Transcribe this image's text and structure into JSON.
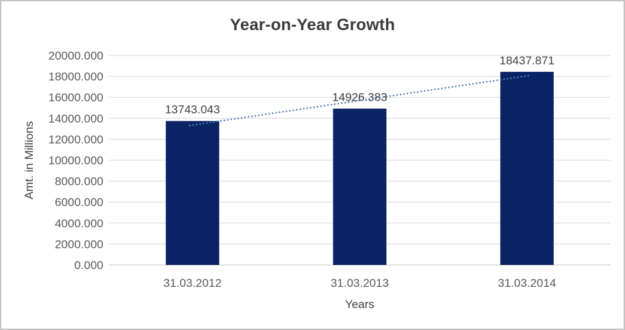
{
  "window": {
    "background": "#ffffff",
    "border_color": "#c3c3c3"
  },
  "chart_data": {
    "type": "bar",
    "title": "Year-on-Year Growth",
    "xlabel": "Years",
    "ylabel": "Amt. in Millions",
    "categories": [
      "31.03.2012",
      "31.03.2013",
      "31.03.2014"
    ],
    "values": [
      13743.043,
      14926.383,
      18437.871
    ],
    "data_labels": [
      "13743.043",
      "14926.383",
      "18437.871"
    ],
    "ylim": [
      0,
      20000
    ],
    "ytick_step": 2000,
    "ytick_decimals": 3,
    "grid": true,
    "legend": "none",
    "bar_color": "#0a2463",
    "gridline_color": "#d9d9d9",
    "axis_line_color": "#c6c6c6",
    "tick_label_color": "#595959",
    "data_label_color": "#404040",
    "trendline": {
      "type": "linear",
      "style": "dotted",
      "color": "#4a7ebb"
    }
  }
}
